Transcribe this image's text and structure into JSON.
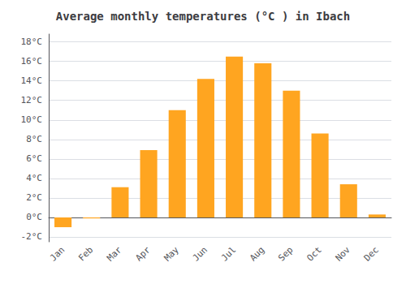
{
  "chart_data": {
    "type": "bar",
    "title": "Average monthly temperatures (°C ) in Ibach",
    "categories": [
      "Jan",
      "Feb",
      "Mar",
      "Apr",
      "May",
      "Jun",
      "Jul",
      "Aug",
      "Sep",
      "Oct",
      "Nov",
      "Dec"
    ],
    "values": [
      -1.0,
      -0.1,
      3.1,
      6.9,
      11.0,
      14.2,
      16.5,
      15.8,
      13.0,
      8.6,
      3.4,
      0.3
    ],
    "color": "#FFA520",
    "ylim": [
      -2.5,
      18.8
    ],
    "yticks": [
      {
        "value": -2,
        "label": "-2°C"
      },
      {
        "value": 0,
        "label": "0°C"
      },
      {
        "value": 2,
        "label": "2°C"
      },
      {
        "value": 4,
        "label": "4°C"
      },
      {
        "value": 6,
        "label": "6°C"
      },
      {
        "value": 8,
        "label": "8°C"
      },
      {
        "value": 10,
        "label": "10°C"
      },
      {
        "value": 12,
        "label": "12°C"
      },
      {
        "value": 14,
        "label": "14°C"
      },
      {
        "value": 16,
        "label": "16°C"
      },
      {
        "value": 18,
        "label": "18°C"
      }
    ],
    "grid": true
  }
}
